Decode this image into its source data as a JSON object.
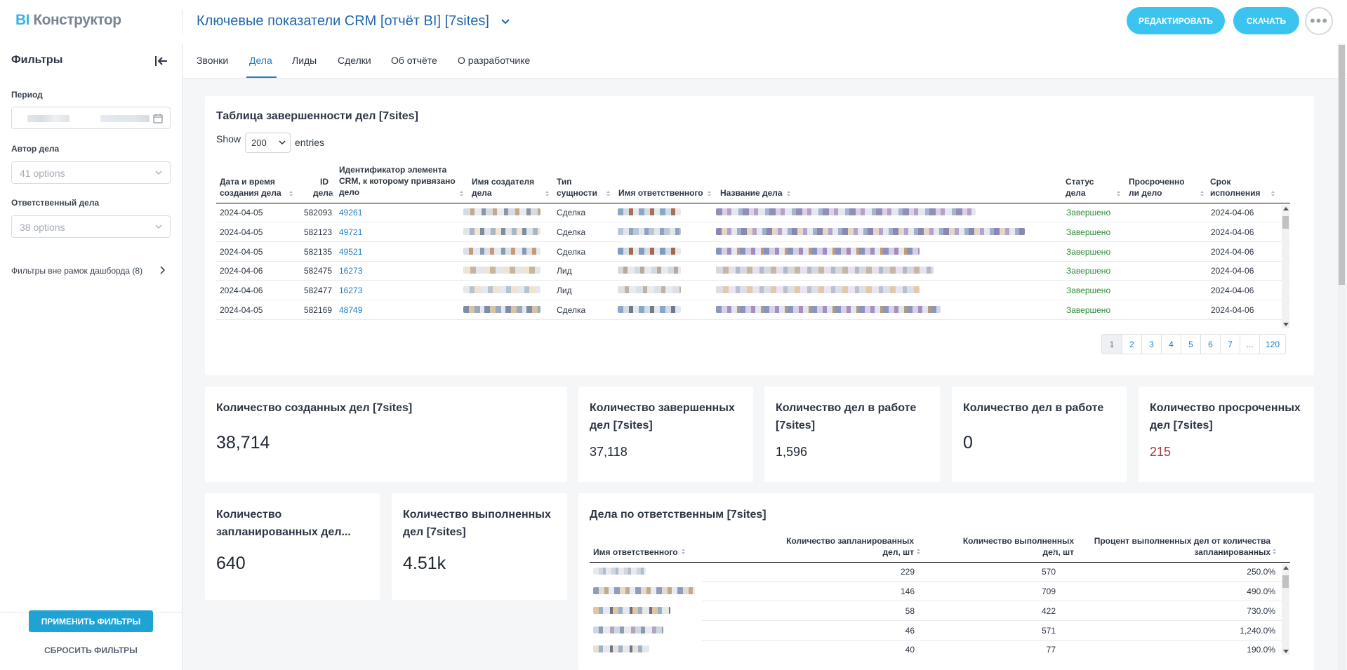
{
  "header": {
    "logo_bi": "BI",
    "logo_rest": "Конструктор",
    "title": "Ключевые показатели CRM [отчёт BI] [7sites]",
    "edit_label": "РЕДАКТИРОВАТЬ",
    "download_label": "СКАЧАТЬ",
    "more_label": "•••"
  },
  "sidebar": {
    "title": "Фильтры",
    "period_label": "Период",
    "author_label": "Автор дела",
    "author_placeholder": "41 options",
    "responsible_label": "Ответственный дела",
    "responsible_placeholder": "38 options",
    "outer_filters": "Фильтры вне рамок дашборда (8)",
    "apply_label": "ПРИМЕНИТЬ ФИЛЬТРЫ",
    "reset_label": "СБРОСИТЬ ФИЛЬТРЫ"
  },
  "tabs": [
    "Звонки",
    "Дела",
    "Лиды",
    "Сделки",
    "Об отчёте",
    "О разработчике"
  ],
  "active_tab": "Дела",
  "table1": {
    "title": "Таблица завершенности дел [7sites]",
    "show_label": "Show",
    "show_value": "200",
    "entries_label": "entries",
    "headers": {
      "date": [
        "Дата и время",
        "создания дела"
      ],
      "id": [
        "ID",
        "дела"
      ],
      "crm": [
        "Идентификатор элемента",
        "CRM, к которому привязано",
        "дело"
      ],
      "creator": [
        "Имя создателя",
        "дела"
      ],
      "type": [
        "Тип",
        "сущности"
      ],
      "responsible": "Имя ответственного",
      "name": "Название дела",
      "status": [
        "Статус",
        "дела"
      ],
      "overdue": [
        "Просроченно",
        "ли дело"
      ],
      "deadline": [
        "Срок",
        "исполнения"
      ]
    },
    "rows": [
      {
        "date": "2024-04-05",
        "id": "582093",
        "crm": "49261",
        "type": "Сделка",
        "status": "Завершено",
        "deadline": "2024-04-06"
      },
      {
        "date": "2024-04-05",
        "id": "582123",
        "crm": "49721",
        "type": "Сделка",
        "status": "Завершено",
        "deadline": "2024-04-06"
      },
      {
        "date": "2024-04-05",
        "id": "582135",
        "crm": "49521",
        "type": "Сделка",
        "status": "Завершено",
        "deadline": "2024-04-06"
      },
      {
        "date": "2024-04-06",
        "id": "582475",
        "crm": "16273",
        "type": "Лид",
        "status": "Завершено",
        "deadline": "2024-04-06"
      },
      {
        "date": "2024-04-06",
        "id": "582477",
        "crm": "16273",
        "type": "Лид",
        "status": "Завершено",
        "deadline": "2024-04-06"
      },
      {
        "date": "2024-04-05",
        "id": "582169",
        "crm": "48749",
        "type": "Сделка",
        "status": "Завершено",
        "deadline": "2024-04-06"
      }
    ],
    "pages": [
      "1",
      "2",
      "3",
      "4",
      "5",
      "6",
      "7",
      "...",
      "120"
    ]
  },
  "kpis": [
    {
      "title": "Количество созданных дел [7sites]",
      "value": "38,714"
    },
    {
      "title": "Количество завершенных дел [7sites]",
      "value": "37,118"
    },
    {
      "title": "Количество дел в работе [7sites]",
      "value": "1,596"
    },
    {
      "title": "Количество дел в работе",
      "value": "0"
    },
    {
      "title": "Количество просроченных дел [7sites]",
      "value": "215"
    },
    {
      "title": "Количество запланированных дел...",
      "value": "640"
    },
    {
      "title": "Количество выполненных дел [7sites]",
      "value": "4.51k"
    }
  ],
  "table2": {
    "title": "Дела по ответственным [7sites]",
    "headers": {
      "name": "Имя ответственного",
      "planned": [
        "Количество запланированных",
        "дел, шт"
      ],
      "done": [
        "Количество выполненных",
        "дел, шт"
      ],
      "percent": [
        "Процент выполненных дел от количества",
        "запланированных"
      ]
    },
    "rows": [
      {
        "planned": "229",
        "done": "570",
        "percent": "250.0%"
      },
      {
        "planned": "146",
        "done": "709",
        "percent": "490.0%"
      },
      {
        "planned": "58",
        "done": "422",
        "percent": "730.0%"
      },
      {
        "planned": "46",
        "done": "571",
        "percent": "1,240.0%"
      },
      {
        "planned": "40",
        "done": "77",
        "percent": "190.0%"
      }
    ]
  },
  "colors": {
    "accent": "#3bc4f0",
    "title_blue": "#2067b0",
    "status_green": "#2e8b3a",
    "overdue_red": "#a23a3a"
  }
}
